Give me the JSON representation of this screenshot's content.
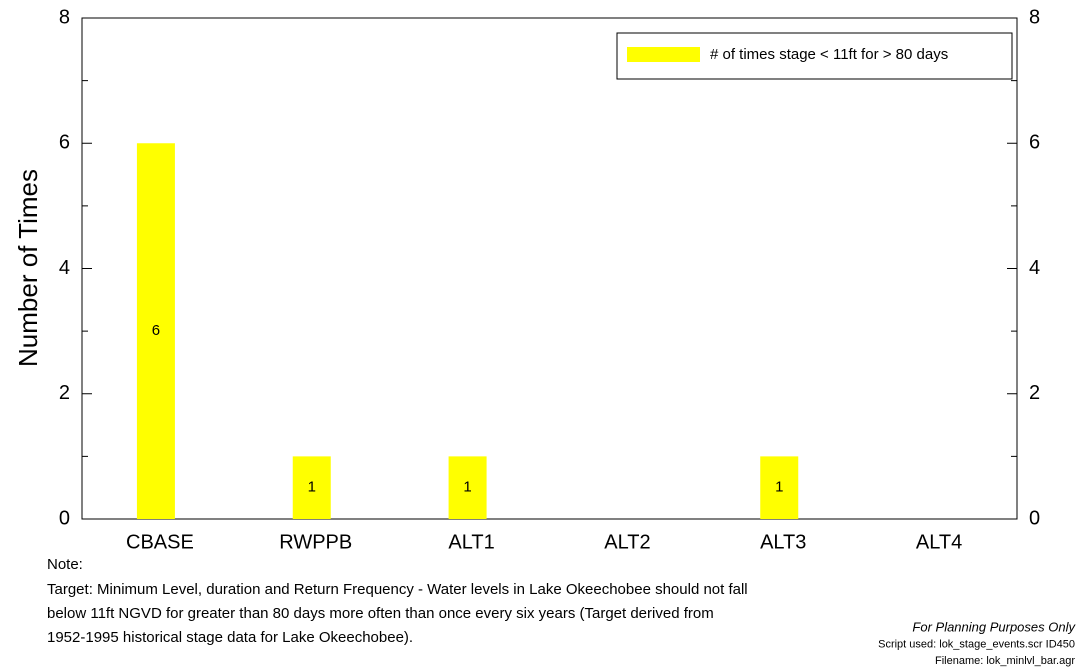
{
  "chart_data": {
    "type": "bar",
    "y_label": "Number of Times",
    "categories": [
      "CBASE",
      "RWPPB",
      "ALT1",
      "ALT2",
      "ALT3",
      "ALT4"
    ],
    "series": [
      {
        "name": "# of times stage < 11ft for > 80 days",
        "color": "#ffff00",
        "values": [
          6,
          1,
          1,
          0,
          1,
          0
        ],
        "value_labels": [
          "6",
          "1",
          "1",
          null,
          "1",
          null
        ]
      }
    ],
    "ylim": [
      0,
      8
    ],
    "yticks": [
      0,
      2,
      4,
      6,
      8
    ],
    "yminorticks": [
      1,
      3,
      5,
      7
    ],
    "y2lim": [
      0,
      8
    ],
    "y2ticks": [
      0,
      2,
      4,
      6,
      8
    ],
    "legend": "top-right",
    "note_heading": "Note:",
    "note_lines": [
      "Target: Minimum Level, duration and Return Frequency - Water levels in Lake Okeechobee should not fall",
      "below 11ft NGVD for greater than 80 days more often than once every six years  (Target derived from",
      "1952-1995 historical stage data for Lake Okeechobee)."
    ],
    "footer": [
      "For Planning Purposes Only",
      "Script used: lok_stage_events.scr ID450",
      "Filename: lok_minlvl_bar.agr"
    ]
  }
}
